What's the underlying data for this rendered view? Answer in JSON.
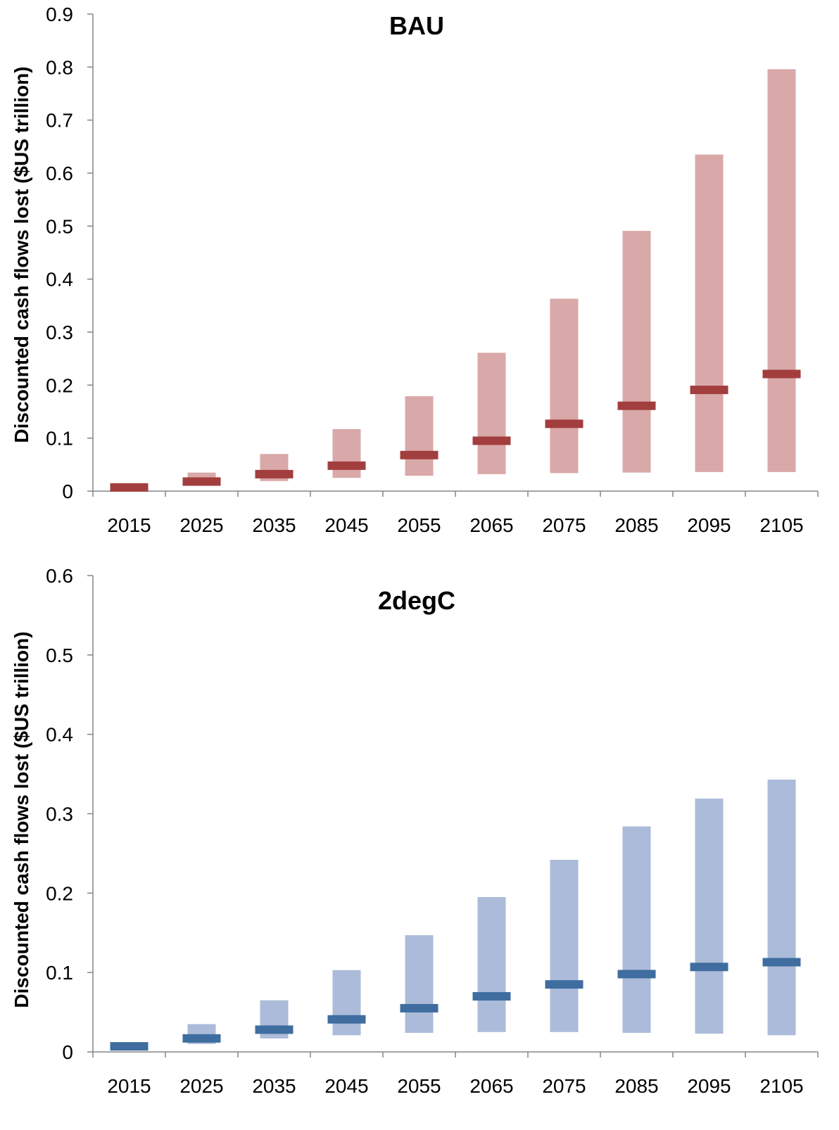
{
  "chart_data": [
    {
      "type": "bar",
      "title": "BAU",
      "xlabel": "",
      "ylabel": "Discounted cash flows lost ($US trillion)",
      "ylim": [
        0,
        0.9
      ],
      "yticks": [
        "0",
        "0.1",
        "0.2",
        "0.3",
        "0.4",
        "0.5",
        "0.6",
        "0.7",
        "0.8",
        "0.9"
      ],
      "categories": [
        "2015",
        "2025",
        "2035",
        "2045",
        "2055",
        "2065",
        "2075",
        "2085",
        "2095",
        "2105"
      ],
      "series": [
        {
          "kind": "range",
          "low": [
            0.004,
            0.011,
            0.019,
            0.025,
            0.029,
            0.032,
            0.034,
            0.035,
            0.036,
            0.036
          ],
          "high": [
            0.008,
            0.035,
            0.07,
            0.117,
            0.179,
            0.261,
            0.363,
            0.491,
            0.635,
            0.796
          ]
        },
        {
          "kind": "central",
          "values": [
            0.007,
            0.018,
            0.032,
            0.048,
            0.068,
            0.095,
            0.127,
            0.161,
            0.191,
            0.221
          ]
        }
      ],
      "colors": {
        "range": "#d9a8a8",
        "central": "#a23e3e"
      },
      "grid": false,
      "legend": "none"
    },
    {
      "type": "bar",
      "title": "2degC",
      "xlabel": "",
      "ylabel": "Discounted cash flows lost ($US trillion)",
      "ylim": [
        0,
        0.6
      ],
      "yticks": [
        "0",
        "0.1",
        "0.2",
        "0.3",
        "0.4",
        "0.5",
        "0.6"
      ],
      "categories": [
        "2015",
        "2025",
        "2035",
        "2045",
        "2055",
        "2065",
        "2075",
        "2085",
        "2095",
        "2105"
      ],
      "series": [
        {
          "kind": "range",
          "low": [
            0.004,
            0.01,
            0.017,
            0.021,
            0.024,
            0.025,
            0.025,
            0.024,
            0.023,
            0.021
          ],
          "high": [
            0.008,
            0.035,
            0.065,
            0.103,
            0.147,
            0.195,
            0.242,
            0.284,
            0.319,
            0.343
          ]
        },
        {
          "kind": "central",
          "values": [
            0.007,
            0.017,
            0.028,
            0.041,
            0.055,
            0.07,
            0.085,
            0.098,
            0.107,
            0.113
          ]
        }
      ],
      "colors": {
        "range": "#abbbd9",
        "central": "#3f6d9f"
      },
      "grid": false,
      "legend": "none"
    }
  ]
}
